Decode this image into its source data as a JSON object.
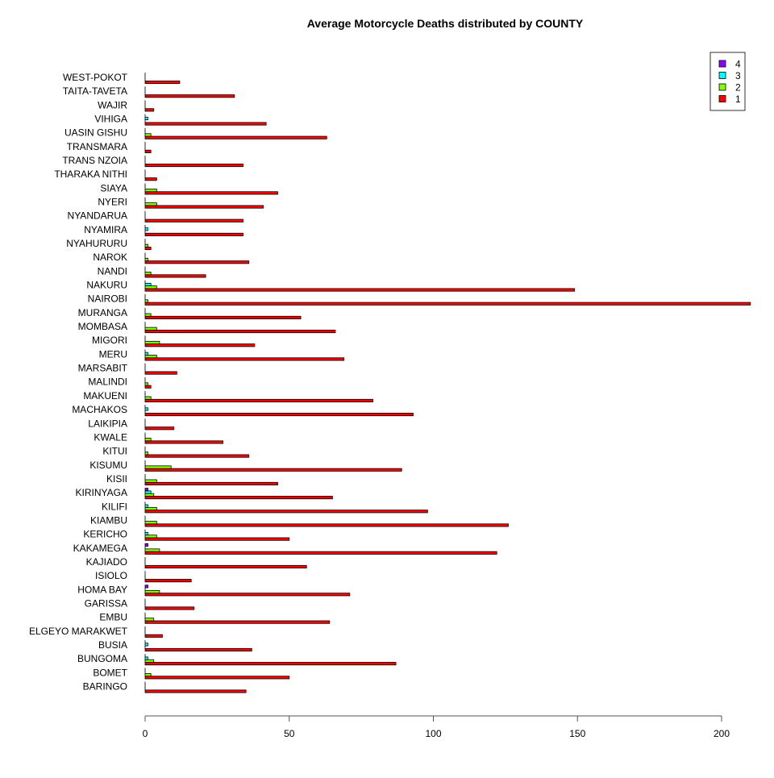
{
  "chart_data": {
    "type": "bar",
    "orientation": "horizontal",
    "title": "Average Motorcycle Deaths distributed by COUNTY",
    "xlim": [
      0,
      210
    ],
    "xticks": [
      0,
      50,
      100,
      150,
      200
    ],
    "grid": false,
    "legend_position": "top-right",
    "categories": [
      "WEST-POKOT",
      "TAITA-TAVETA",
      "WAJIR",
      "VIHIGA",
      "UASIN GISHU",
      "TRANSMARA",
      "TRANS NZOIA",
      "THARAKA NITHI",
      "SIAYA",
      "NYERI",
      "NYANDARUA",
      "NYAMIRA",
      "NYAHURURU",
      "NAROK",
      "NANDI",
      "NAKURU",
      "NAIROBI",
      "MURANGA",
      "MOMBASA",
      "MIGORI",
      "MERU",
      "MARSABIT",
      "MALINDI",
      "MAKUENI",
      "MACHAKOS",
      "LAIKIPIA",
      "KWALE",
      "KITUI",
      "KISUMU",
      "KISII",
      "KIRINYAGA",
      "KILIFI",
      "KIAMBU",
      "KERICHO",
      "KAKAMEGA",
      "KAJIADO",
      "ISIOLO",
      "HOMA BAY",
      "GARISSA",
      "EMBU",
      "ELGEYO MARAKWET",
      "BUSIA",
      "BUNGOMA",
      "BOMET",
      "BARINGO"
    ],
    "series": [
      {
        "name": "4",
        "color": "#8B00FF",
        "values": [
          0,
          0,
          0,
          0,
          0,
          0,
          0,
          0,
          0,
          0,
          0,
          0,
          0,
          0,
          0,
          0,
          0,
          0,
          0,
          0,
          0,
          0,
          0,
          0,
          0,
          0,
          0,
          0,
          0,
          0,
          1,
          0,
          0,
          0,
          1,
          0,
          0,
          1,
          0,
          0,
          0,
          0,
          0,
          0,
          0
        ]
      },
      {
        "name": "3",
        "color": "#00FFFF",
        "values": [
          0,
          0,
          0,
          1,
          0,
          0,
          0,
          0,
          0,
          0,
          0,
          1,
          0,
          0,
          0,
          2,
          0,
          0,
          0,
          0,
          1,
          0,
          0,
          0,
          1,
          0,
          0,
          0,
          0,
          0,
          2,
          1,
          0,
          1,
          0,
          0,
          0,
          0,
          0,
          0,
          0,
          1,
          1,
          0,
          0
        ]
      },
      {
        "name": "2",
        "color": "#80FF00",
        "values": [
          0,
          0,
          0,
          0,
          2,
          0,
          0,
          0,
          4,
          4,
          0,
          0,
          1,
          1,
          2,
          4,
          1,
          2,
          4,
          5,
          4,
          0,
          1,
          2,
          0,
          0,
          2,
          1,
          9,
          4,
          3,
          4,
          4,
          4,
          5,
          0,
          0,
          5,
          0,
          3,
          0,
          0,
          3,
          2,
          0
        ]
      },
      {
        "name": "1",
        "color": "#FF0000",
        "values": [
          12,
          31,
          3,
          42,
          63,
          2,
          34,
          4,
          46,
          41,
          34,
          34,
          2,
          36,
          21,
          149,
          210,
          54,
          66,
          38,
          69,
          11,
          2,
          79,
          93,
          10,
          27,
          36,
          89,
          46,
          65,
          98,
          126,
          50,
          122,
          56,
          16,
          71,
          17,
          64,
          6,
          37,
          87,
          50,
          35
        ]
      }
    ]
  }
}
